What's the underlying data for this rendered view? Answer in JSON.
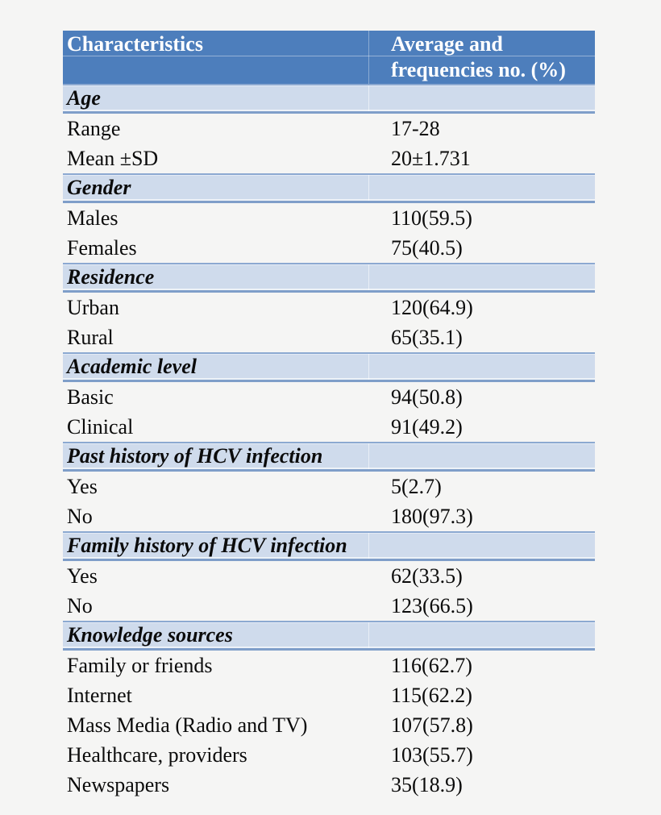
{
  "page": {
    "background_color": "#F5F5F4"
  },
  "table": {
    "colors": {
      "header_background": "#4D7EBC",
      "header_text": "#FFFFFF",
      "section_band_background": "#CFDBEC",
      "section_band_border": "#8CA9D1",
      "body_text": "#0B0B0B"
    },
    "header": {
      "col1": "Characteristics",
      "col2": "Average and frequencies no. (%)"
    },
    "sections": [
      {
        "title": "Age",
        "rows": [
          {
            "label": "Range",
            "value": "17-28"
          },
          {
            "label": "Mean ±SD",
            "value": "20±1.731"
          }
        ]
      },
      {
        "title": "Gender",
        "rows": [
          {
            "label": "Males",
            "value": "110(59.5)"
          },
          {
            "label": "Females",
            "value": "75(40.5)"
          }
        ]
      },
      {
        "title": "Residence",
        "rows": [
          {
            "label": "Urban",
            "value": "120(64.9)"
          },
          {
            "label": "Rural",
            "value": "65(35.1)"
          }
        ]
      },
      {
        "title": "Academic level",
        "rows": [
          {
            "label": "Basic",
            "value": "94(50.8)"
          },
          {
            "label": "Clinical",
            "value": "91(49.2)"
          }
        ]
      },
      {
        "title": "Past history of HCV infection",
        "rows": [
          {
            "label": "Yes",
            "value": "5(2.7)"
          },
          {
            "label": "No",
            "value": "180(97.3)"
          }
        ]
      },
      {
        "title": "Family history of HCV infection",
        "rows": [
          {
            "label": "Yes",
            "value": "62(33.5)"
          },
          {
            "label": "No",
            "value": "123(66.5)"
          }
        ]
      },
      {
        "title": "Knowledge sources",
        "rows": [
          {
            "label": "Family or friends",
            "value": "116(62.7)"
          },
          {
            "label": "Internet",
            "value": "115(62.2)"
          },
          {
            "label": "Mass Media (Radio and TV)",
            "value": "107(57.8)"
          },
          {
            "label": "Healthcare, providers",
            "value": "103(55.7)"
          },
          {
            "label": "Newspapers",
            "value": "35(18.9)"
          }
        ]
      }
    ]
  }
}
